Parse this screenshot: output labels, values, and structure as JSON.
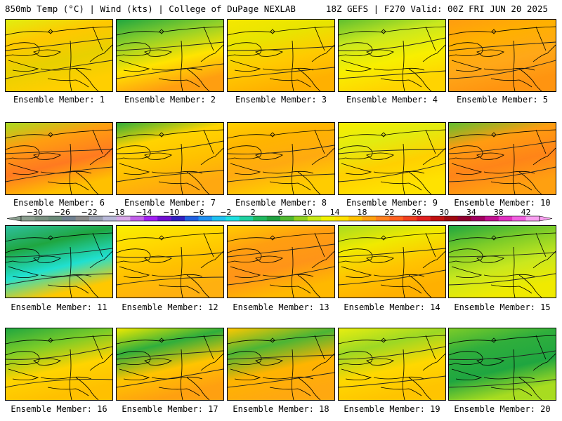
{
  "header": {
    "left": "850mb Temp (°C) | Wind (kts) | College of DuPage NEXLAB",
    "right": "18Z GEFS | F270 Valid: 00Z FRI JUN 20 2025"
  },
  "panels": [
    {
      "label": "Ensemble Member: 1",
      "colors": [
        "#e1ef10",
        "#ffc800",
        "#e8d000",
        "#ffcf00"
      ]
    },
    {
      "label": "Ensemble Member: 2",
      "colors": [
        "#1fa640",
        "#8fd02a",
        "#ffe400",
        "#ff9e10"
      ]
    },
    {
      "label": "Ensemble Member: 3",
      "colors": [
        "#f5e800",
        "#e8e400",
        "#ffca00",
        "#ffb000"
      ]
    },
    {
      "label": "Ensemble Member: 4",
      "colors": [
        "#5fbf30",
        "#c9e81e",
        "#f8ef00",
        "#ffd400"
      ]
    },
    {
      "label": "Ensemble Member: 5",
      "colors": [
        "#ff9c10",
        "#ffb000",
        "#ffa818",
        "#ff9410"
      ]
    },
    {
      "label": "Ensemble Member: 6",
      "colors": [
        "#a8dc20",
        "#ff9e10",
        "#ff7a20",
        "#ffc000"
      ]
    },
    {
      "label": "Ensemble Member: 7",
      "colors": [
        "#2fae3c",
        "#ffd400",
        "#ffc000",
        "#ffa810"
      ]
    },
    {
      "label": "Ensemble Member: 8",
      "colors": [
        "#ffd000",
        "#ffb400",
        "#ffaa10",
        "#ffcc00"
      ]
    },
    {
      "label": "Ensemble Member: 9",
      "colors": [
        "#f8ef00",
        "#e2ec10",
        "#ffd000",
        "#ffe200"
      ]
    },
    {
      "label": "Ensemble Member: 10",
      "colors": [
        "#5fbf30",
        "#ff9c10",
        "#ff8418",
        "#ffa010"
      ]
    },
    {
      "label": "Ensemble Member: 11",
      "colors": [
        "#2ec0a0",
        "#1fa640",
        "#20e0d0",
        "#ffc800"
      ]
    },
    {
      "label": "Ensemble Member: 12",
      "colors": [
        "#f8ef00",
        "#ffd800",
        "#ffc000",
        "#ffb010"
      ]
    },
    {
      "label": "Ensemble Member: 13",
      "colors": [
        "#ffcc00",
        "#ff9e10",
        "#ff9418",
        "#ffb800"
      ]
    },
    {
      "label": "Ensemble Member: 14",
      "colors": [
        "#a8dc20",
        "#f0ea00",
        "#ffc400",
        "#ffb000"
      ]
    },
    {
      "label": "Ensemble Member: 15",
      "colors": [
        "#1fa640",
        "#7ccc28",
        "#c9e81e",
        "#f0ea00"
      ]
    },
    {
      "label": "Ensemble Member: 16",
      "colors": [
        "#1fa640",
        "#7ccc28",
        "#ffd400",
        "#ffc000"
      ]
    },
    {
      "label": "Ensemble Member: 17",
      "colors": [
        "#f0ea00",
        "#2fae3c",
        "#ffc400",
        "#ffa010"
      ]
    },
    {
      "label": "Ensemble Member: 18",
      "colors": [
        "#ffc800",
        "#4bb535",
        "#ffb400",
        "#ffa810"
      ]
    },
    {
      "label": "Ensemble Member: 19",
      "colors": [
        "#e8ee10",
        "#9cd824",
        "#ffd800",
        "#ffc400"
      ]
    },
    {
      "label": "Ensemble Member: 20",
      "colors": [
        "#7ccc28",
        "#2fae3c",
        "#1fa640",
        "#a8dc20"
      ]
    }
  ],
  "colorbar": {
    "ticks": [
      "−30",
      "−26",
      "−22",
      "−18",
      "−14",
      "−10",
      "−6",
      "−2",
      "2",
      "6",
      "10",
      "14",
      "18",
      "22",
      "26",
      "30",
      "34",
      "38",
      "42"
    ],
    "colors": [
      "#8a9e8e",
      "#7a9080",
      "#6a8a78",
      "#708090",
      "#8a8a8a",
      "#9aa0b0",
      "#b8b8d8",
      "#d8a8e8",
      "#c060e8",
      "#a020f0",
      "#7010d0",
      "#3020c0",
      "#2060e0",
      "#2090f0",
      "#20c0f0",
      "#20e0e0",
      "#20d0a0",
      "#20b860",
      "#20a040",
      "#50b830",
      "#90d020",
      "#c8e818",
      "#f0f000",
      "#ffe000",
      "#ffc000",
      "#ffa010",
      "#ff8020",
      "#ff6020",
      "#f04020",
      "#e02020",
      "#c01010",
      "#a00a10",
      "#900030",
      "#a00060",
      "#c01090",
      "#e030c0",
      "#f060e0",
      "#f8a0f0"
    ]
  }
}
